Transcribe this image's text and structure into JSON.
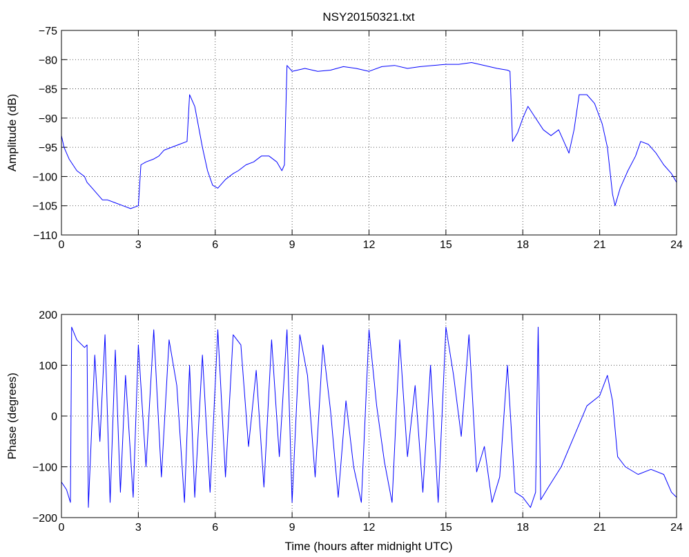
{
  "chart_data": [
    {
      "type": "line",
      "title": "NSY20150321.txt",
      "xlabel": "",
      "ylabel": "Amplitude (dB)",
      "xlim": [
        0,
        24
      ],
      "ylim": [
        -110,
        -75
      ],
      "xticks": [
        0,
        3,
        6,
        9,
        12,
        15,
        18,
        21,
        24
      ],
      "yticks": [
        -75,
        -80,
        -85,
        -90,
        -95,
        -100,
        -105,
        -110
      ],
      "grid": true,
      "series": [
        {
          "color": "#0000ff",
          "x": [
            0,
            0.1,
            0.3,
            0.6,
            0.9,
            1.0,
            1.2,
            1.4,
            1.6,
            1.8,
            2.1,
            2.4,
            2.7,
            3.0,
            3.1,
            3.3,
            3.6,
            3.8,
            4.0,
            4.3,
            4.6,
            4.9,
            5.0,
            5.2,
            5.5,
            5.7,
            5.9,
            6.1,
            6.4,
            6.7,
            6.9,
            7.2,
            7.5,
            7.8,
            8.1,
            8.4,
            8.6,
            8.7,
            8.8,
            9.0,
            9.5,
            10.0,
            10.5,
            11.0,
            11.5,
            12.0,
            12.5,
            13.0,
            13.5,
            14.0,
            14.5,
            15.0,
            15.5,
            16.0,
            16.5,
            17.0,
            17.4,
            17.5,
            17.6,
            17.8,
            18.0,
            18.2,
            18.5,
            18.8,
            19.1,
            19.4,
            19.6,
            19.8,
            20.0,
            20.1,
            20.2,
            20.5,
            20.8,
            21.1,
            21.3,
            21.5,
            21.6,
            21.8,
            22.1,
            22.4,
            22.6,
            22.9,
            23.2,
            23.5,
            23.8,
            24.0
          ],
          "y": [
            -93,
            -95,
            -97,
            -99,
            -100,
            -101,
            -102,
            -103,
            -104,
            -104,
            -104.5,
            -105,
            -105.5,
            -105,
            -98,
            -97.5,
            -97,
            -96.5,
            -95.5,
            -95,
            -94.5,
            -94,
            -86,
            -88,
            -95,
            -99,
            -101.5,
            -102,
            -100.5,
            -99.5,
            -99,
            -98,
            -97.5,
            -96.5,
            -96.5,
            -97.5,
            -99,
            -98,
            -81,
            -82,
            -81.5,
            -82,
            -81.8,
            -81.2,
            -81.5,
            -82,
            -81.2,
            -81,
            -81.5,
            -81.2,
            -81,
            -80.8,
            -80.8,
            -80.5,
            -81,
            -81.5,
            -81.8,
            -82,
            -94,
            -92.5,
            -90,
            -88,
            -90,
            -92,
            -93,
            -92,
            -94,
            -96,
            -92,
            -89,
            -86,
            -86,
            -87.5,
            -91,
            -95,
            -103,
            -105,
            -102,
            -99,
            -96.5,
            -94,
            -94.5,
            -96,
            -98,
            -99.5,
            -101
          ]
        }
      ]
    },
    {
      "type": "line",
      "title": "",
      "xlabel": "Time (hours after midnight UTC)",
      "ylabel": "Phase (degrees)",
      "xlim": [
        0,
        24
      ],
      "ylim": [
        -200,
        200
      ],
      "xticks": [
        0,
        3,
        6,
        9,
        12,
        15,
        18,
        21,
        24
      ],
      "yticks": [
        200,
        100,
        0,
        -100,
        -200
      ],
      "grid": true,
      "series": [
        {
          "color": "#0000ff",
          "x": [
            0,
            0.2,
            0.35,
            0.4,
            0.6,
            0.9,
            1.0,
            1.05,
            1.3,
            1.5,
            1.7,
            1.9,
            2.1,
            2.3,
            2.5,
            2.8,
            3.0,
            3.3,
            3.6,
            3.9,
            4.2,
            4.5,
            4.8,
            5.0,
            5.2,
            5.5,
            5.8,
            6.1,
            6.4,
            6.7,
            7.0,
            7.3,
            7.6,
            7.9,
            8.2,
            8.5,
            8.8,
            9.0,
            9.3,
            9.6,
            9.9,
            10.2,
            10.5,
            10.8,
            11.1,
            11.4,
            11.7,
            12.0,
            12.3,
            12.6,
            12.9,
            13.2,
            13.5,
            13.8,
            14.1,
            14.4,
            14.7,
            15.0,
            15.3,
            15.6,
            15.9,
            16.2,
            16.5,
            16.8,
            17.1,
            17.4,
            17.7,
            18.0,
            18.3,
            18.5,
            18.6,
            18.7,
            19.0,
            19.5,
            20.0,
            20.5,
            21.0,
            21.3,
            21.5,
            21.7,
            22.0,
            22.5,
            23.0,
            23.5,
            23.8,
            24.0
          ],
          "y": [
            -130,
            -145,
            -170,
            175,
            150,
            135,
            140,
            -180,
            120,
            -50,
            160,
            -170,
            130,
            -150,
            80,
            -160,
            140,
            -100,
            170,
            -120,
            150,
            60,
            -170,
            100,
            -160,
            120,
            -150,
            170,
            -120,
            160,
            140,
            -60,
            90,
            -140,
            150,
            -80,
            170,
            -170,
            160,
            80,
            -120,
            140,
            10,
            -160,
            30,
            -100,
            -170,
            170,
            20,
            -90,
            -170,
            150,
            -80,
            60,
            -150,
            100,
            -170,
            175,
            80,
            -40,
            160,
            -110,
            -60,
            -170,
            -120,
            100,
            -150,
            -160,
            -180,
            -150,
            175,
            -165,
            -140,
            -100,
            -40,
            20,
            40,
            80,
            30,
            -80,
            -100,
            -115,
            -105,
            -115,
            -150,
            -160
          ]
        }
      ]
    }
  ]
}
